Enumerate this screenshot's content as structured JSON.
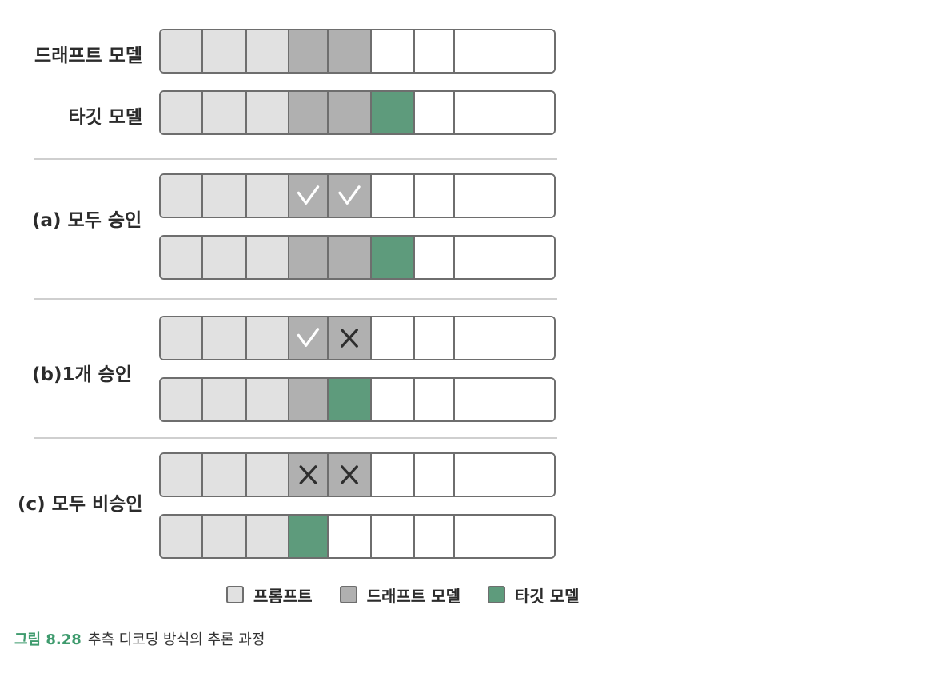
{
  "colors": {
    "prompt": "#e1e1e1",
    "draft": "#b0b0b0",
    "target": "#5e9b7c",
    "empty": "#ffffff",
    "border": "#6e6e6e",
    "caption_accent": "#3f9b6e"
  },
  "labels": {
    "draft_model": "드래프트 모델",
    "target_model": "타깃 모델",
    "case_a": "(a) 모두 승인",
    "case_b": "(b)1개 승인",
    "case_c": "(c) 모두 비승인"
  },
  "rows": [
    {
      "name": "top-draft-row",
      "cells": [
        "prompt",
        "prompt",
        "prompt",
        "draft",
        "draft",
        "empty",
        "empty",
        "empty"
      ],
      "marks": [
        "",
        "",
        "",
        "",
        "",
        "",
        "",
        ""
      ]
    },
    {
      "name": "top-target-row",
      "cells": [
        "prompt",
        "prompt",
        "prompt",
        "draft",
        "draft",
        "target",
        "empty",
        "empty"
      ],
      "marks": [
        "",
        "",
        "",
        "",
        "",
        "",
        "",
        ""
      ]
    },
    {
      "name": "a-draft-row",
      "cells": [
        "prompt",
        "prompt",
        "prompt",
        "draft",
        "draft",
        "empty",
        "empty",
        "empty"
      ],
      "marks": [
        "",
        "",
        "",
        "check",
        "check",
        "",
        "",
        ""
      ]
    },
    {
      "name": "a-target-row",
      "cells": [
        "prompt",
        "prompt",
        "prompt",
        "draft",
        "draft",
        "target",
        "empty",
        "empty"
      ],
      "marks": [
        "",
        "",
        "",
        "",
        "",
        "",
        "",
        ""
      ]
    },
    {
      "name": "b-draft-row",
      "cells": [
        "prompt",
        "prompt",
        "prompt",
        "draft",
        "draft",
        "empty",
        "empty",
        "empty"
      ],
      "marks": [
        "",
        "",
        "",
        "check",
        "cross",
        "",
        "",
        ""
      ]
    },
    {
      "name": "b-target-row",
      "cells": [
        "prompt",
        "prompt",
        "prompt",
        "draft",
        "target",
        "empty",
        "empty",
        "empty"
      ],
      "marks": [
        "",
        "",
        "",
        "",
        "",
        "",
        "",
        ""
      ]
    },
    {
      "name": "c-draft-row",
      "cells": [
        "prompt",
        "prompt",
        "prompt",
        "draft",
        "draft",
        "empty",
        "empty",
        "empty"
      ],
      "marks": [
        "",
        "",
        "",
        "cross",
        "cross",
        "",
        "",
        ""
      ]
    },
    {
      "name": "c-target-row",
      "cells": [
        "prompt",
        "prompt",
        "prompt",
        "target",
        "empty",
        "empty",
        "empty",
        "empty"
      ],
      "marks": [
        "",
        "",
        "",
        "",
        "",
        "",
        "",
        ""
      ]
    }
  ],
  "legend": {
    "prompt": "프롬프트",
    "draft": "드래프트 모델",
    "target": "타깃 모델"
  },
  "caption": {
    "number": "그림 8.28",
    "text": "추측 디코딩 방식의 추론 과정"
  }
}
